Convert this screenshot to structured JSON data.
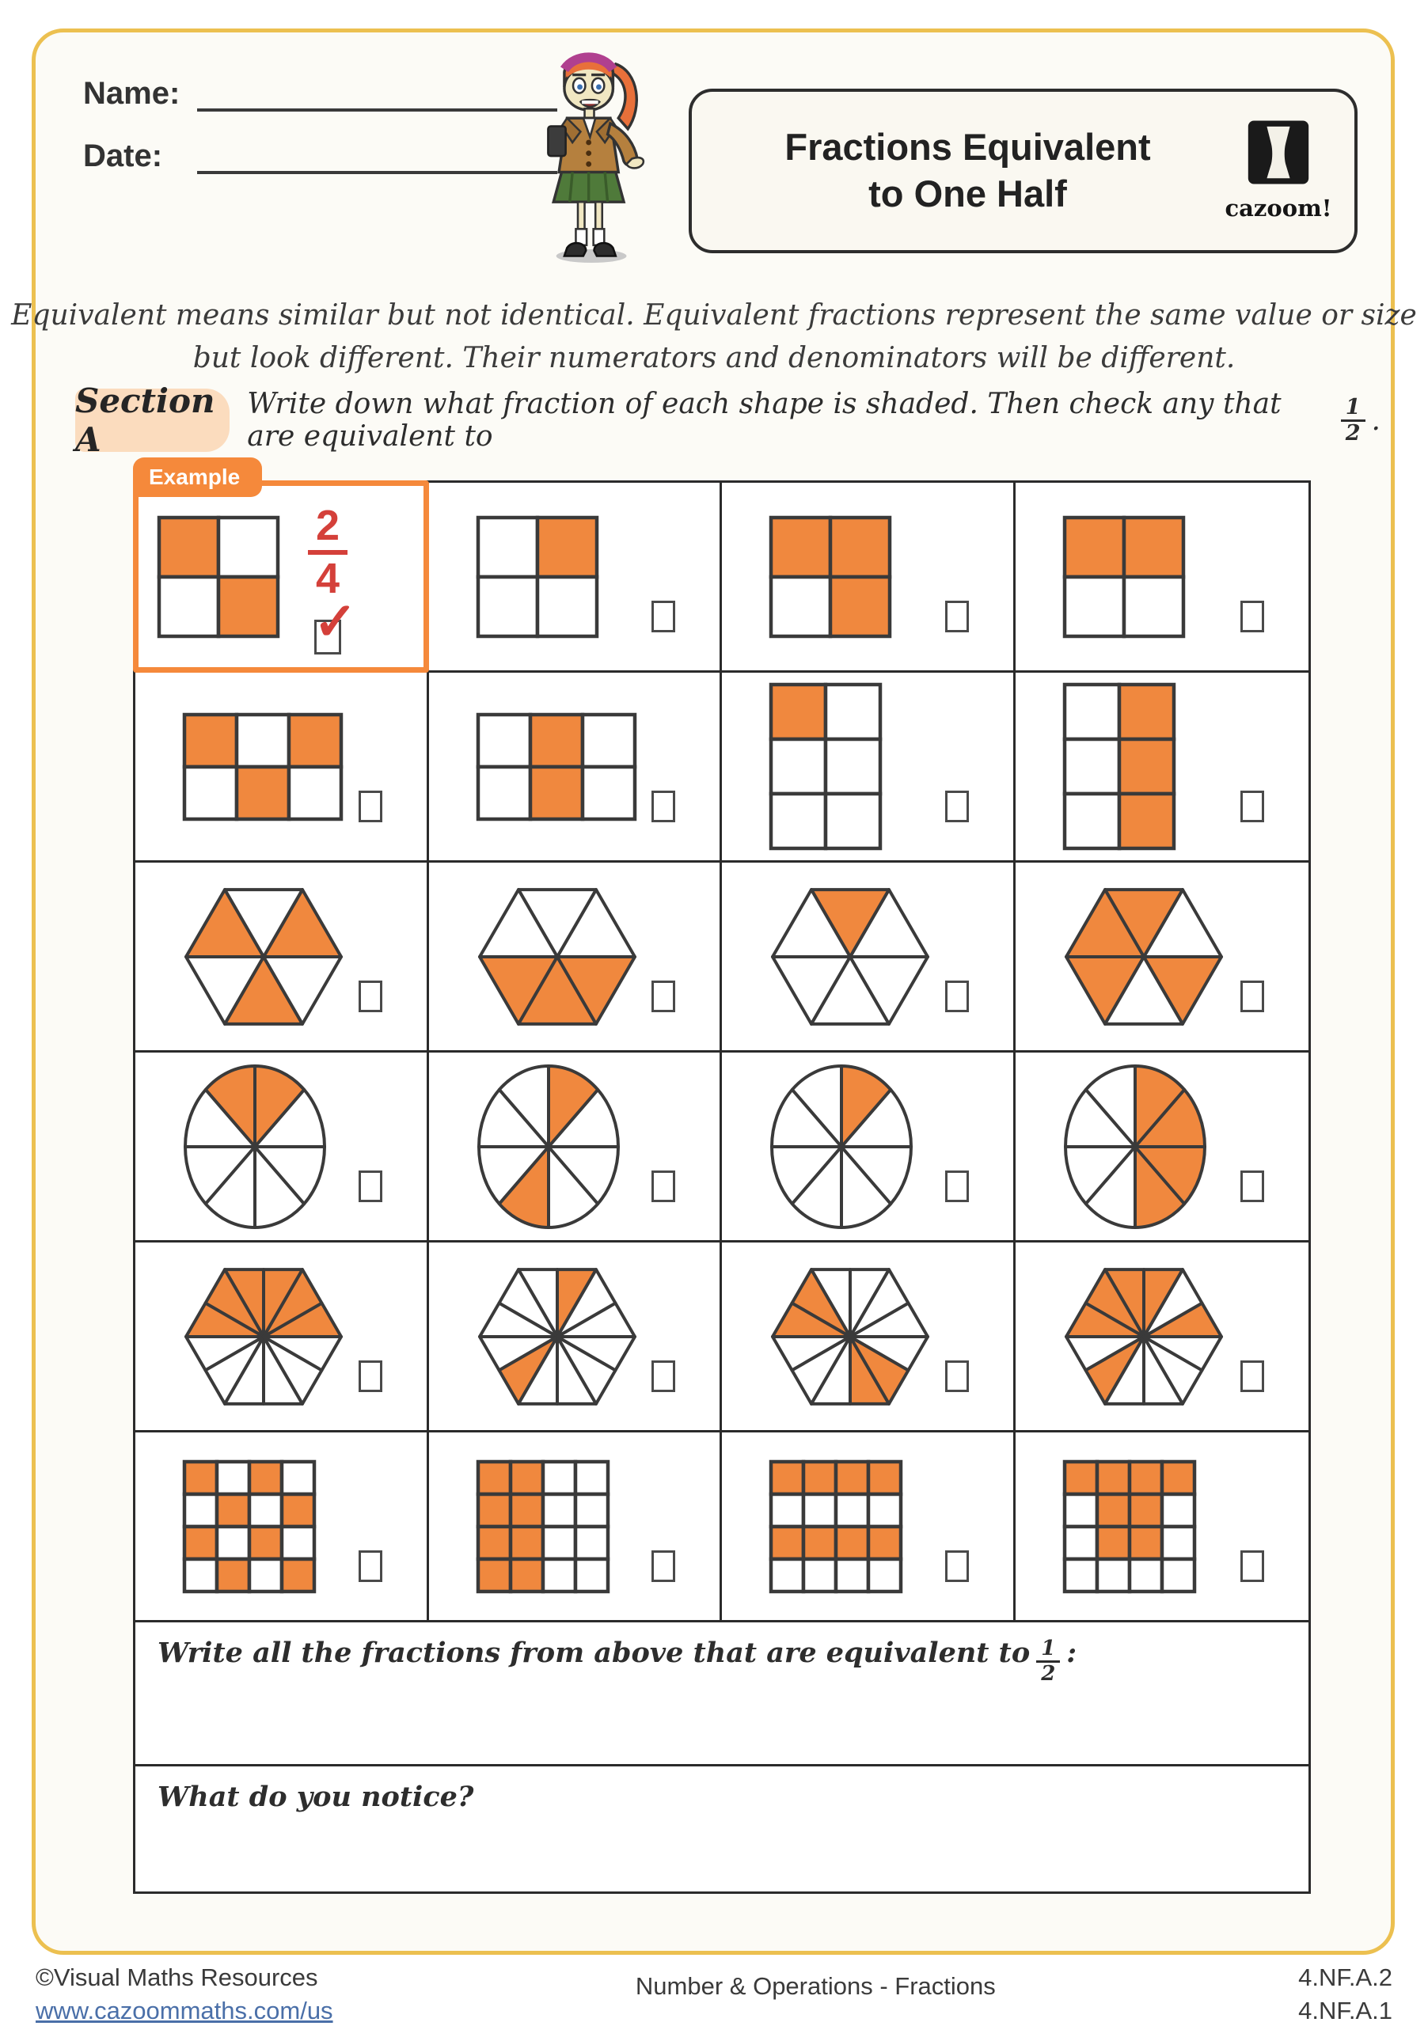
{
  "colors": {
    "shade": "#f0883e",
    "outline": "#3a3a3a",
    "example_border": "#f5893b",
    "accent_red": "#d4403a",
    "page_border": "#ecc050",
    "section_bg": "#fbdcbe",
    "link_blue": "#4a6fa8"
  },
  "header": {
    "name_label": "Name:",
    "date_label": "Date:",
    "title_line1": "Fractions Equivalent",
    "title_line2": "to One Half",
    "logo_text": "cazoom!"
  },
  "intro": {
    "line1": "Equivalent means similar but not identical. Equivalent fractions represent the same value or size",
    "line2": "but look different. Their numerators and denominators will be different."
  },
  "section_a": {
    "label": "Section A",
    "instruction": "Write down what fraction of each shape is shaded. Then check any that are equivalent to",
    "fraction_num": "1",
    "fraction_den": "2",
    "suffix": "."
  },
  "example": {
    "tab_label": "Example",
    "answer_num": "2",
    "answer_den": "4",
    "checked": true,
    "checkmark": "✓"
  },
  "grid": {
    "cells": [
      {
        "example": true,
        "type": "grid",
        "cols": 2,
        "rows": 2,
        "shaded": [
          0,
          3
        ]
      },
      {
        "type": "grid",
        "cols": 2,
        "rows": 2,
        "shaded": [
          1
        ]
      },
      {
        "type": "grid",
        "cols": 2,
        "rows": 2,
        "shaded": [
          0,
          1,
          3
        ]
      },
      {
        "type": "grid",
        "cols": 2,
        "rows": 2,
        "shaded": [
          0,
          1
        ]
      },
      {
        "type": "grid",
        "cols": 3,
        "rows": 2,
        "shaded": [
          0,
          2,
          4
        ]
      },
      {
        "type": "grid",
        "cols": 3,
        "rows": 2,
        "shaded": [
          1,
          4
        ]
      },
      {
        "type": "grid",
        "cols": 2,
        "rows": 3,
        "shaded": [
          0
        ]
      },
      {
        "type": "grid",
        "cols": 2,
        "rows": 3,
        "shaded": [
          1,
          3,
          5
        ]
      },
      {
        "type": "hex",
        "parts": 6,
        "shaded": [
          0,
          2,
          4
        ]
      },
      {
        "type": "hex",
        "parts": 6,
        "shaded": [
          3,
          4,
          5
        ]
      },
      {
        "type": "hex",
        "parts": 6,
        "shaded": [
          1
        ]
      },
      {
        "type": "hex",
        "parts": 6,
        "shaded": [
          1,
          2,
          3,
          5
        ]
      },
      {
        "type": "circle",
        "parts": 8,
        "shaded": [
          1,
          2
        ]
      },
      {
        "type": "circle",
        "parts": 8,
        "shaded": [
          1,
          5
        ]
      },
      {
        "type": "circle",
        "parts": 8,
        "shaded": [
          1
        ]
      },
      {
        "type": "circle",
        "parts": 8,
        "shaded": [
          0,
          1,
          6,
          7
        ]
      },
      {
        "type": "hex",
        "parts": 12,
        "shaded": [
          0,
          1,
          2,
          3,
          4,
          5
        ]
      },
      {
        "type": "hex",
        "parts": 12,
        "shaded": [
          2,
          7
        ]
      },
      {
        "type": "hex",
        "parts": 12,
        "shaded": [
          4,
          5,
          9,
          10
        ]
      },
      {
        "type": "hex",
        "parts": 12,
        "shaded": [
          0,
          2,
          3,
          4,
          5,
          7
        ]
      },
      {
        "type": "grid",
        "cols": 4,
        "rows": 4,
        "shaded": [
          0,
          2,
          5,
          7,
          8,
          10,
          13,
          15
        ]
      },
      {
        "type": "grid",
        "cols": 4,
        "rows": 4,
        "shaded": [
          0,
          1,
          4,
          5,
          8,
          9,
          12,
          13
        ]
      },
      {
        "type": "grid",
        "cols": 4,
        "rows": 4,
        "shaded": [
          0,
          1,
          2,
          3,
          8,
          9,
          10,
          11
        ]
      },
      {
        "type": "grid",
        "cols": 4,
        "rows": 4,
        "shaded": [
          0,
          1,
          2,
          3,
          5,
          6,
          9,
          10
        ]
      }
    ]
  },
  "questions": {
    "write_all_text": "Write all the fractions from above that are equivalent to",
    "write_all_num": "1",
    "write_all_den": "2",
    "write_all_suffix": ":",
    "notice_text": "What do you notice?"
  },
  "footer": {
    "copyright": "©Visual Maths Resources",
    "website": "www.cazoommaths.com/us",
    "center": "Number & Operations - Fractions",
    "standard1": "4.NF.A.2",
    "standard2": "4.NF.A.1"
  }
}
